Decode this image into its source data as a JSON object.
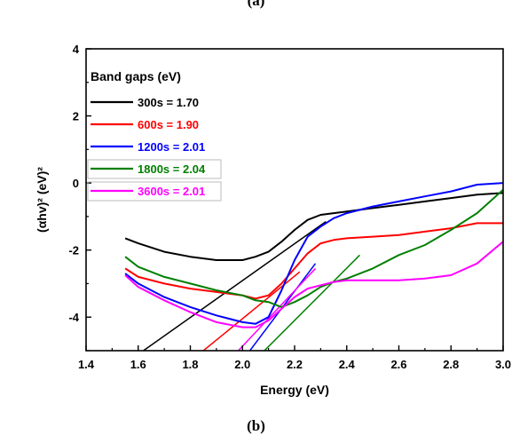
{
  "figure": {
    "top_caption": "(a)",
    "label": "(b)"
  },
  "chart_data": {
    "type": "line",
    "xlabel": "Energy (eV)",
    "ylabel": "(αhv)² (eV)²",
    "xlim": [
      1.4,
      3.0
    ],
    "ylim": [
      -5,
      4
    ],
    "xticks": [
      1.4,
      1.6,
      1.8,
      2.0,
      2.2,
      2.4,
      2.6,
      2.8,
      3.0
    ],
    "xtick_labels": [
      "1.4",
      "1.6",
      "1.8",
      "2.0",
      "2.2",
      "2.4",
      "2.6",
      "2.8",
      "3.0"
    ],
    "yticks": [
      -4,
      -2,
      0,
      2,
      4
    ],
    "ytick_labels": [
      "-4",
      "-2",
      "0",
      "2",
      "4"
    ],
    "grid": false,
    "legend_title": "Band gaps (eV)",
    "legend_placement": "top-left",
    "series": [
      {
        "name": "300s = 1.70",
        "color": "#000000",
        "x": [
          1.55,
          1.6,
          1.7,
          1.8,
          1.9,
          2.0,
          2.05,
          2.1,
          2.15,
          2.2,
          2.25,
          2.3,
          2.35,
          2.4,
          2.5,
          2.6,
          2.7,
          2.8,
          2.9,
          3.0
        ],
        "y": [
          -1.65,
          -1.8,
          -2.05,
          -2.2,
          -2.3,
          -2.3,
          -2.2,
          -2.05,
          -1.75,
          -1.4,
          -1.1,
          -0.95,
          -0.9,
          -0.85,
          -0.75,
          -0.65,
          -0.55,
          -0.45,
          -0.35,
          -0.3
        ],
        "tangent": [
          [
            1.62,
            -5.0
          ],
          [
            2.32,
            -1.15
          ]
        ]
      },
      {
        "name": "600s = 1.90",
        "color": "#ff0000",
        "x": [
          1.55,
          1.6,
          1.7,
          1.8,
          1.9,
          2.0,
          2.05,
          2.1,
          2.15,
          2.2,
          2.25,
          2.3,
          2.35,
          2.4,
          2.5,
          2.6,
          2.7,
          2.8,
          2.9,
          3.0
        ],
        "y": [
          -2.55,
          -2.8,
          -3.0,
          -3.15,
          -3.25,
          -3.35,
          -3.45,
          -3.35,
          -3.0,
          -2.55,
          -2.1,
          -1.8,
          -1.7,
          -1.65,
          -1.6,
          -1.55,
          -1.45,
          -1.35,
          -1.2,
          -1.2
        ],
        "tangent": [
          [
            1.85,
            -5.0
          ],
          [
            2.22,
            -2.65
          ]
        ]
      },
      {
        "name": "1200s = 2.01",
        "color": "#0000ff",
        "x": [
          1.55,
          1.6,
          1.7,
          1.8,
          1.9,
          2.0,
          2.05,
          2.1,
          2.15,
          2.2,
          2.25,
          2.3,
          2.35,
          2.4,
          2.5,
          2.6,
          2.7,
          2.8,
          2.9,
          3.0
        ],
        "y": [
          -2.7,
          -3.0,
          -3.4,
          -3.7,
          -3.95,
          -4.15,
          -4.2,
          -4.0,
          -3.2,
          -2.3,
          -1.6,
          -1.3,
          -1.05,
          -0.9,
          -0.7,
          -0.55,
          -0.4,
          -0.25,
          -0.05,
          0.0
        ],
        "tangent": [
          [
            1.98,
            -5.5
          ],
          [
            2.28,
            -2.4
          ]
        ]
      },
      {
        "name": "1800s = 2.04",
        "color": "#008000",
        "x": [
          1.55,
          1.6,
          1.7,
          1.8,
          1.9,
          2.0,
          2.05,
          2.1,
          2.15,
          2.2,
          2.25,
          2.3,
          2.35,
          2.4,
          2.5,
          2.6,
          2.7,
          2.8,
          2.9,
          3.0
        ],
        "y": [
          -2.2,
          -2.5,
          -2.8,
          -3.0,
          -3.2,
          -3.35,
          -3.5,
          -3.55,
          -3.7,
          -3.55,
          -3.35,
          -3.1,
          -2.95,
          -2.85,
          -2.55,
          -2.15,
          -1.85,
          -1.4,
          -0.9,
          -0.2
        ],
        "tangent": [
          [
            2.02,
            -5.5
          ],
          [
            2.45,
            -2.15
          ]
        ]
      },
      {
        "name": "3600s = 2.01",
        "color": "#ff00ff",
        "x": [
          1.55,
          1.6,
          1.7,
          1.8,
          1.9,
          2.0,
          2.05,
          2.1,
          2.15,
          2.2,
          2.25,
          2.3,
          2.35,
          2.4,
          2.5,
          2.6,
          2.7,
          2.8,
          2.9,
          3.0
        ],
        "y": [
          -2.75,
          -3.1,
          -3.5,
          -3.85,
          -4.15,
          -4.3,
          -4.3,
          -4.1,
          -3.75,
          -3.4,
          -3.15,
          -3.05,
          -2.95,
          -2.9,
          -2.9,
          -2.9,
          -2.85,
          -2.75,
          -2.4,
          -1.75
        ],
        "tangent": [
          [
            1.96,
            -5.2
          ],
          [
            2.28,
            -2.55
          ]
        ]
      }
    ]
  }
}
